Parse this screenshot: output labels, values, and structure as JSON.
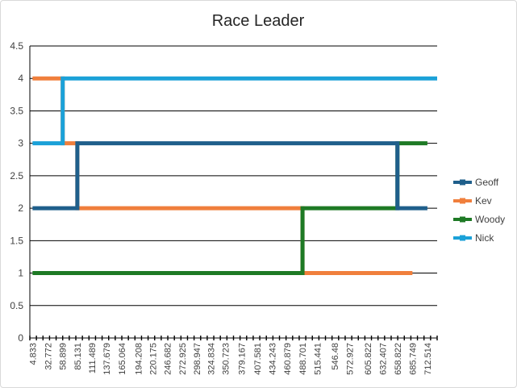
{
  "chart_data": {
    "type": "line",
    "title": "Race Leader",
    "xlabel": "",
    "ylabel": "",
    "ylim": [
      0,
      4.5
    ],
    "y_ticks": [
      "0",
      "0.5",
      "1",
      "1.5",
      "2",
      "2.5",
      "3",
      "3.5",
      "4",
      "4.5"
    ],
    "x_tick_labels": [
      "4.833",
      "32.772",
      "58.899",
      "85.131",
      "111.489",
      "137.679",
      "165.064",
      "194.208",
      "220.175",
      "246.682",
      "272.925",
      "298.947",
      "324.834",
      "350.723",
      "379.167",
      "407.581",
      "434.243",
      "460.879",
      "488.701",
      "515.441",
      "546.48",
      "572.927",
      "605.822",
      "632.407",
      "658.822",
      "685.749",
      "712.514"
    ],
    "grid": "horizontal",
    "legend_position": "right",
    "series": [
      {
        "name": "Geoff",
        "color": "#1f5f8b",
        "points": [
          [
            4.833,
            2
          ],
          [
            85.131,
            2
          ],
          [
            85.131,
            3
          ],
          [
            658.822,
            3
          ],
          [
            658.822,
            2
          ],
          [
            712.514,
            2
          ]
        ]
      },
      {
        "name": "Kev",
        "color": "#f07f3c",
        "points": [
          [
            4.833,
            4
          ],
          [
            58.899,
            4
          ],
          [
            58.899,
            3
          ],
          [
            85.131,
            3
          ],
          [
            85.131,
            2
          ],
          [
            488.701,
            2
          ],
          [
            488.701,
            1
          ],
          [
            685.749,
            1
          ]
        ]
      },
      {
        "name": "Woody",
        "color": "#1e7a25",
        "points": [
          [
            4.833,
            1
          ],
          [
            488.701,
            1
          ],
          [
            488.701,
            2
          ],
          [
            658.822,
            2
          ],
          [
            658.822,
            3
          ],
          [
            712.514,
            3
          ]
        ]
      },
      {
        "name": "Nick",
        "color": "#1ba1d8",
        "points": [
          [
            4.833,
            3
          ],
          [
            58.899,
            3
          ],
          [
            58.899,
            4
          ],
          [
            730,
            4
          ]
        ]
      }
    ]
  }
}
